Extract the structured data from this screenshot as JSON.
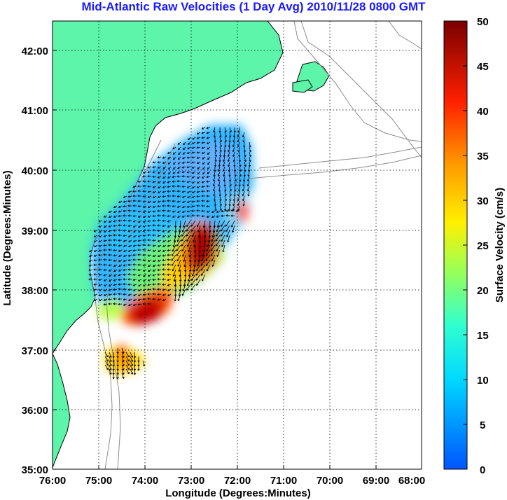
{
  "title": "Mid-Atlantic Raw Velocities (1 Day Avg) 2010/11/28 0800 GMT",
  "map": {
    "xlabel": "Longitude (Degrees:Minutes)",
    "ylabel": "Latitude (Degrees:Minutes)",
    "x_ticks": [
      "76:00",
      "75:00",
      "74:00",
      "73:00",
      "72:00",
      "71:00",
      "70:00",
      "69:00",
      "68:00"
    ],
    "y_ticks": [
      "42:00",
      "41:00",
      "40:00",
      "39:00",
      "38:00",
      "37:00",
      "36:00",
      "35:00"
    ],
    "xlim": [
      -76,
      -68
    ],
    "ylim": [
      35,
      42.5
    ],
    "grid": "dotted",
    "land_color": "#5cf5aa",
    "isobath_color": "#8c8c8c"
  },
  "colorbar": {
    "label": "Surface Velocity (cm/s)",
    "ticks": [
      "50",
      "45",
      "40",
      "35",
      "30",
      "25",
      "20",
      "15",
      "10",
      "5",
      "0"
    ],
    "range": [
      0,
      50
    ],
    "colormap": "jet"
  }
}
